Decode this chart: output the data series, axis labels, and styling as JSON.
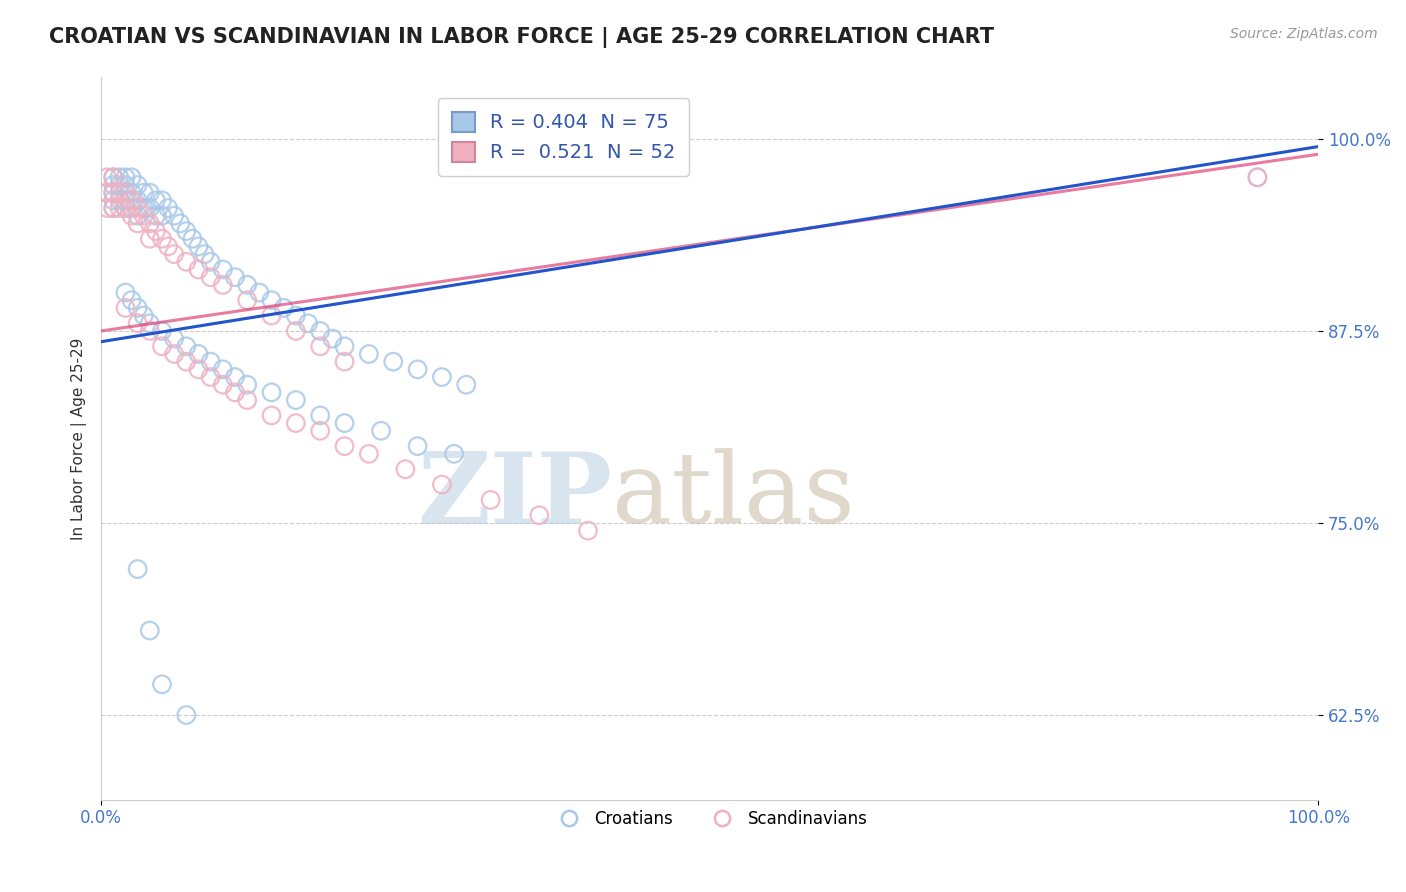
{
  "title": "CROATIAN VS SCANDINAVIAN IN LABOR FORCE | AGE 25-29 CORRELATION CHART",
  "source_text": "Source: ZipAtlas.com",
  "xlabel": "",
  "ylabel": "In Labor Force | Age 25-29",
  "xlim": [
    0.0,
    1.0
  ],
  "ylim": [
    0.57,
    1.04
  ],
  "yticks": [
    0.625,
    0.75,
    0.875,
    1.0
  ],
  "ytick_labels": [
    "62.5%",
    "75.0%",
    "87.5%",
    "100.0%"
  ],
  "xtick_labels_left": "0.0%",
  "xtick_labels_right": "100.0%",
  "legend_r_blue": "0.404",
  "legend_n_blue": "75",
  "legend_r_pink": "0.521",
  "legend_n_pink": "52",
  "blue_color": "#a8c8e8",
  "pink_color": "#f0b0c0",
  "trend_blue": "#2255cc",
  "trend_pink": "#dd4477",
  "background_color": "#ffffff",
  "watermark_zip": "ZIP",
  "watermark_atlas": "atlas",
  "watermark_color_zip": "#b8cfe0",
  "watermark_color_atlas": "#c8b8a0",
  "croatians_label": "Croatians",
  "scandinavians_label": "Scandinavians",
  "blue_scatter_x": [
    0.01,
    0.01,
    0.01,
    0.01,
    0.01,
    0.015,
    0.015,
    0.015,
    0.02,
    0.02,
    0.02,
    0.02,
    0.025,
    0.025,
    0.025,
    0.03,
    0.03,
    0.03,
    0.035,
    0.035,
    0.04,
    0.04,
    0.045,
    0.045,
    0.05,
    0.05,
    0.055,
    0.06,
    0.065,
    0.07,
    0.075,
    0.08,
    0.085,
    0.09,
    0.1,
    0.11,
    0.12,
    0.13,
    0.14,
    0.15,
    0.16,
    0.17,
    0.18,
    0.19,
    0.2,
    0.22,
    0.24,
    0.26,
    0.28,
    0.3,
    0.02,
    0.025,
    0.03,
    0.035,
    0.04,
    0.05,
    0.06,
    0.07,
    0.08,
    0.09,
    0.1,
    0.11,
    0.12,
    0.14,
    0.16,
    0.18,
    0.2,
    0.23,
    0.26,
    0.29,
    0.03,
    0.04,
    0.05,
    0.07,
    0.95
  ],
  "blue_scatter_y": [
    0.975,
    0.97,
    0.965,
    0.96,
    0.955,
    0.975,
    0.97,
    0.96,
    0.975,
    0.97,
    0.96,
    0.955,
    0.975,
    0.965,
    0.955,
    0.97,
    0.96,
    0.95,
    0.965,
    0.955,
    0.965,
    0.955,
    0.96,
    0.95,
    0.96,
    0.95,
    0.955,
    0.95,
    0.945,
    0.94,
    0.935,
    0.93,
    0.925,
    0.92,
    0.915,
    0.91,
    0.905,
    0.9,
    0.895,
    0.89,
    0.885,
    0.88,
    0.875,
    0.87,
    0.865,
    0.86,
    0.855,
    0.85,
    0.845,
    0.84,
    0.9,
    0.895,
    0.89,
    0.885,
    0.88,
    0.875,
    0.87,
    0.865,
    0.86,
    0.855,
    0.85,
    0.845,
    0.84,
    0.835,
    0.83,
    0.82,
    0.815,
    0.81,
    0.8,
    0.795,
    0.72,
    0.68,
    0.645,
    0.625,
    0.975
  ],
  "pink_scatter_x": [
    0.005,
    0.005,
    0.005,
    0.01,
    0.01,
    0.01,
    0.015,
    0.015,
    0.02,
    0.02,
    0.025,
    0.025,
    0.03,
    0.03,
    0.035,
    0.04,
    0.04,
    0.045,
    0.05,
    0.055,
    0.06,
    0.07,
    0.08,
    0.09,
    0.1,
    0.12,
    0.14,
    0.16,
    0.18,
    0.2,
    0.02,
    0.03,
    0.04,
    0.05,
    0.06,
    0.07,
    0.08,
    0.09,
    0.1,
    0.11,
    0.12,
    0.14,
    0.16,
    0.18,
    0.2,
    0.22,
    0.25,
    0.28,
    0.32,
    0.36,
    0.4,
    0.95
  ],
  "pink_scatter_y": [
    0.975,
    0.965,
    0.955,
    0.975,
    0.965,
    0.955,
    0.965,
    0.955,
    0.965,
    0.955,
    0.96,
    0.95,
    0.955,
    0.945,
    0.95,
    0.945,
    0.935,
    0.94,
    0.935,
    0.93,
    0.925,
    0.92,
    0.915,
    0.91,
    0.905,
    0.895,
    0.885,
    0.875,
    0.865,
    0.855,
    0.89,
    0.88,
    0.875,
    0.865,
    0.86,
    0.855,
    0.85,
    0.845,
    0.84,
    0.835,
    0.83,
    0.82,
    0.815,
    0.81,
    0.8,
    0.795,
    0.785,
    0.775,
    0.765,
    0.755,
    0.745,
    0.975
  ],
  "trend_blue_x0": 0.0,
  "trend_blue_y0": 0.868,
  "trend_blue_x1": 1.0,
  "trend_blue_y1": 0.995,
  "trend_pink_x0": 0.0,
  "trend_pink_y0": 0.875,
  "trend_pink_x1": 1.0,
  "trend_pink_y1": 0.99
}
